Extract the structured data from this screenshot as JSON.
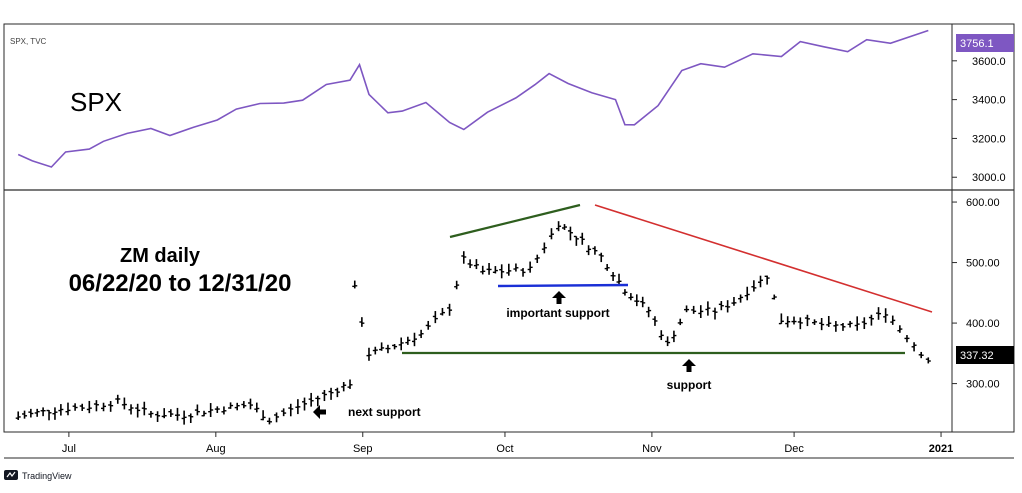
{
  "spx": {
    "symbol_label": "SPX, TVC",
    "title": "SPX",
    "current_price": "3756.1",
    "y_ticks": [
      "3000.0",
      "3200.0",
      "3400.0",
      "3600.0"
    ],
    "colors": {
      "line": "#7e57c2",
      "badge": "#7e57c2"
    }
  },
  "zm": {
    "title_line1": "ZM daily",
    "title_line2": "06/22/20 to 12/31/20",
    "current_price": "337.32",
    "y_ticks": [
      "300.00",
      "400.00",
      "500.00",
      "600.00"
    ],
    "annotations": {
      "important_support": "important support",
      "support": "support",
      "next_support": "next support"
    },
    "colors": {
      "bars": "#000000",
      "upper_trend": "#2e5e1e",
      "resistance": "#d32f2f",
      "important_support": "#1a2fd6",
      "support": "#2e5e1e"
    }
  },
  "x_axis": {
    "labels": [
      "Jul",
      "Aug",
      "Sep",
      "Oct",
      "Nov",
      "Dec",
      "2021"
    ]
  },
  "footer": {
    "brand": "TradingView"
  },
  "chart_data": [
    {
      "type": "line",
      "series": [
        {
          "name": "SPX",
          "x": [
            "2020-06-22",
            "2020-06-25",
            "2020-06-29",
            "2020-07-02",
            "2020-07-07",
            "2020-07-10",
            "2020-07-15",
            "2020-07-20",
            "2020-07-24",
            "2020-07-29",
            "2020-08-03",
            "2020-08-07",
            "2020-08-12",
            "2020-08-17",
            "2020-08-21",
            "2020-08-26",
            "2020-08-31",
            "2020-09-02",
            "2020-09-04",
            "2020-09-08",
            "2020-09-11",
            "2020-09-16",
            "2020-09-21",
            "2020-09-24",
            "2020-09-29",
            "2020-10-05",
            "2020-10-09",
            "2020-10-12",
            "2020-10-16",
            "2020-10-21",
            "2020-10-26",
            "2020-10-28",
            "2020-10-30",
            "2020-11-04",
            "2020-11-09",
            "2020-11-13",
            "2020-11-18",
            "2020-11-24",
            "2020-11-30",
            "2020-12-04",
            "2020-12-09",
            "2020-12-14",
            "2020-12-18",
            "2020-12-23",
            "2020-12-31"
          ],
          "values": [
            3117,
            3084,
            3053,
            3130,
            3145,
            3185,
            3226,
            3251,
            3215,
            3258,
            3295,
            3351,
            3380,
            3382,
            3397,
            3478,
            3500,
            3580,
            3427,
            3332,
            3341,
            3385,
            3282,
            3246,
            3335,
            3409,
            3477,
            3534,
            3483,
            3435,
            3400,
            3271,
            3270,
            3369,
            3550,
            3585,
            3567,
            3636,
            3622,
            3699,
            3672,
            3647,
            3709,
            3690,
            3756.1
          ]
        }
      ],
      "ylim": [
        2960,
        3800
      ],
      "y_ticks": [
        3000,
        3200,
        3400,
        3600
      ]
    },
    {
      "type": "line",
      "series": [
        {
          "name": "ZM daily",
          "x": [
            "2020-06-22",
            "2020-06-26",
            "2020-07-01",
            "2020-07-07",
            "2020-07-13",
            "2020-07-20",
            "2020-07-27",
            "2020-08-03",
            "2020-08-10",
            "2020-08-14",
            "2020-08-20",
            "2020-08-27",
            "2020-08-31",
            "2020-09-01",
            "2020-09-04",
            "2020-09-08",
            "2020-09-15",
            "2020-09-21",
            "2020-09-24",
            "2020-09-28",
            "2020-10-02",
            "2020-10-08",
            "2020-10-14",
            "2020-10-19",
            "2020-10-23",
            "2020-10-28",
            "2020-11-02",
            "2020-11-06",
            "2020-11-10",
            "2020-11-16",
            "2020-11-20",
            "2020-11-27",
            "2020-11-30",
            "2020-12-04",
            "2020-12-10",
            "2020-12-16",
            "2020-12-22",
            "2020-12-28",
            "2020-12-31"
          ],
          "values": [
            245,
            252,
            258,
            262,
            270,
            250,
            248,
            258,
            265,
            240,
            262,
            285,
            301,
            457,
            349,
            358,
            382,
            425,
            505,
            485,
            486,
            489,
            565,
            535,
            510,
            455,
            421,
            365,
            420,
            420,
            435,
            478,
            405,
            405,
            395,
            395,
            418,
            365,
            337.32
          ]
        }
      ],
      "ylim": [
        220,
        610
      ],
      "y_ticks": [
        300,
        400,
        500,
        600
      ],
      "annotations": [
        "important support",
        "support",
        "next support"
      ]
    }
  ]
}
